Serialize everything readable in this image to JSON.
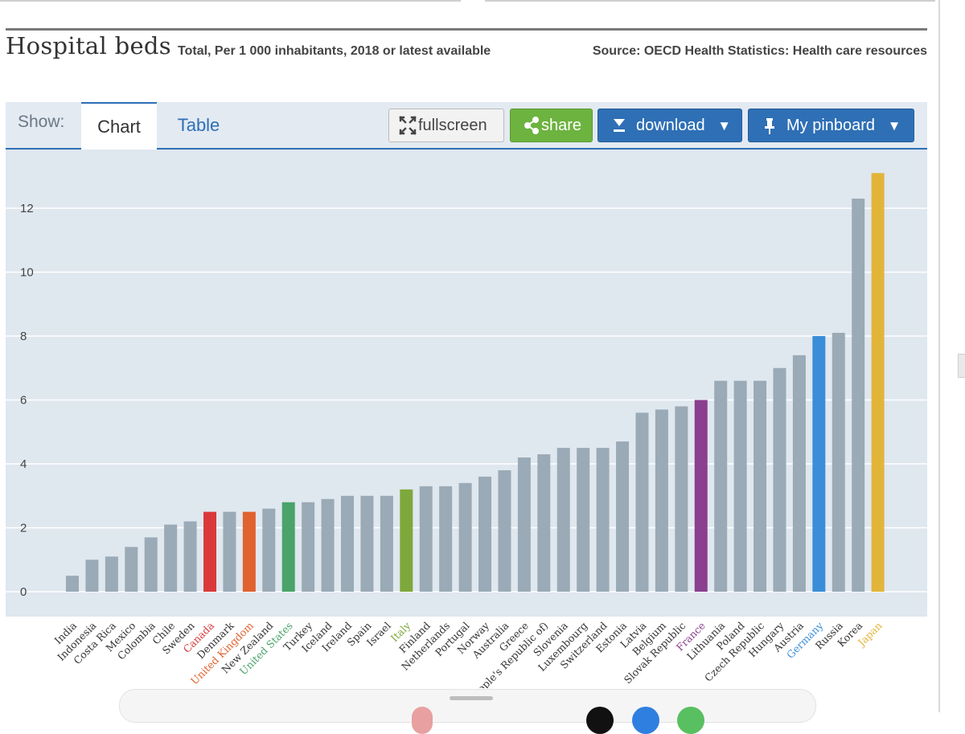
{
  "header": {
    "title": "Hospital beds",
    "subtitle": "Total, Per 1 000 inhabitants, 2018 or latest available",
    "source": "Source: OECD Health Statistics: Health care resources"
  },
  "toolbar": {
    "show_label": "Show:",
    "tabs": [
      {
        "label": "Chart",
        "active": true
      },
      {
        "label": "Table",
        "active": false
      }
    ],
    "fullscreen_label": "fullscreen",
    "share_label": "share",
    "download_label": "download",
    "pinboard_label": "My pinboard",
    "dropdown_arrow": "▼"
  },
  "colors": {
    "default_bar": "#9aaab6",
    "plot_background": "#dfe7ef",
    "grid": "#ffffff",
    "accent_blue": "#2e6fb5",
    "share_green": "#6db33f"
  },
  "chart_data": {
    "type": "bar",
    "title": "Hospital beds",
    "ylim": [
      0,
      13.5
    ],
    "y_ticks": [
      0,
      2,
      4,
      6,
      8,
      10,
      12
    ],
    "grid": true,
    "categories": [
      "India",
      "Indonesia",
      "Costa Rica",
      "Mexico",
      "Colombia",
      "Chile",
      "Sweden",
      "Canada",
      "Denmark",
      "United Kingdom",
      "New Zealand",
      "United States",
      "Turkey",
      "Iceland",
      "Ireland",
      "Spain",
      "Israel",
      "Italy",
      "Finland",
      "Netherlands",
      "Portugal",
      "Norway",
      "Australia",
      "Greece",
      "China (People's Republic of)",
      "Slovenia",
      "Luxembourg",
      "Switzerland",
      "Estonia",
      "Latvia",
      "Belgium",
      "Slovak Republic",
      "France",
      "Lithuania",
      "Poland",
      "Czech Republic",
      "Hungary",
      "Austria",
      "Germany",
      "Russia",
      "Korea",
      "Japan"
    ],
    "values": [
      0.5,
      1.0,
      1.1,
      1.4,
      1.7,
      2.1,
      2.2,
      2.5,
      2.5,
      2.5,
      2.6,
      2.8,
      2.8,
      2.9,
      3.0,
      3.0,
      3.0,
      3.2,
      3.3,
      3.3,
      3.4,
      3.6,
      3.8,
      4.2,
      4.3,
      4.5,
      4.5,
      4.5,
      4.7,
      5.6,
      5.7,
      5.8,
      6.0,
      6.6,
      6.6,
      6.6,
      7.0,
      7.4,
      8.0,
      8.1,
      12.3,
      13.1
    ],
    "highlights": {
      "Canada": "#d9393a",
      "United Kingdom": "#e0622f",
      "United States": "#4aa36a",
      "Italy": "#7ea83b",
      "France": "#8a3f8f",
      "Germany": "#3a8ed9",
      "Japan": "#e2b53a"
    }
  }
}
